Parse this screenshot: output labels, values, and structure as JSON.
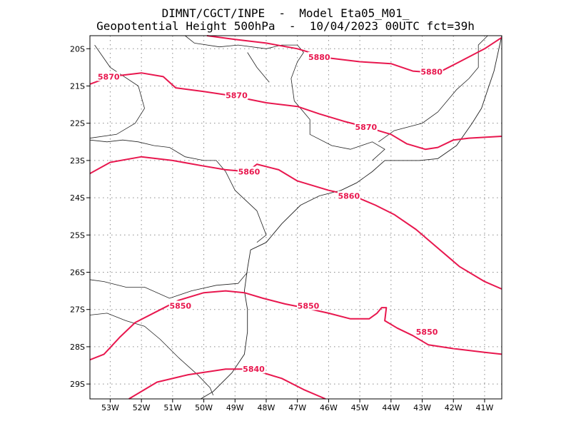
{
  "header": {
    "title_line1": "DIMNT/CGCT/INPE  -  Model Eta05_M01_",
    "title_line2": "Geopotential Height 500hPa  -  10/04/2023 00UTC fct=39h"
  },
  "map": {
    "lon_range": [
      -53.65,
      -40.45
    ],
    "lat_range": [
      -29.4,
      -19.65
    ],
    "x_ticks": [
      {
        "lon": -53,
        "label": "53W"
      },
      {
        "lon": -52,
        "label": "52W"
      },
      {
        "lon": -51,
        "label": "51W"
      },
      {
        "lon": -50,
        "label": "50W"
      },
      {
        "lon": -49,
        "label": "49W"
      },
      {
        "lon": -48,
        "label": "48W"
      },
      {
        "lon": -47,
        "label": "47W"
      },
      {
        "lon": -46,
        "label": "46W"
      },
      {
        "lon": -45,
        "label": "45W"
      },
      {
        "lon": -44,
        "label": "44W"
      },
      {
        "lon": -43,
        "label": "43W"
      },
      {
        "lon": -42,
        "label": "42W"
      },
      {
        "lon": -41,
        "label": "41W"
      }
    ],
    "y_ticks": [
      {
        "lat": -20,
        "label": "20S"
      },
      {
        "lat": -21,
        "label": "21S"
      },
      {
        "lat": -22,
        "label": "22S"
      },
      {
        "lat": -23,
        "label": "23S"
      },
      {
        "lat": -24,
        "label": "24S"
      },
      {
        "lat": -25,
        "label": "25S"
      },
      {
        "lat": -26,
        "label": "26S"
      },
      {
        "lat": -27,
        "label": "27S"
      },
      {
        "lat": -28,
        "label": "28S"
      },
      {
        "lat": -29,
        "label": "29S"
      }
    ],
    "grid": true,
    "contour_color": "#e8174e",
    "contours": [
      {
        "value": 5880,
        "points": [
          [
            -49.9,
            -19.65
          ],
          [
            -49,
            -19.75
          ],
          [
            -48,
            -19.85
          ],
          [
            -47,
            -20
          ],
          [
            -46,
            -20.25
          ],
          [
            -45,
            -20.35
          ],
          [
            -44,
            -20.4
          ],
          [
            -43.3,
            -20.6
          ],
          [
            -42.5,
            -20.65
          ],
          [
            -41.8,
            -20.35
          ],
          [
            -41,
            -20
          ],
          [
            -40.45,
            -19.7
          ]
        ],
        "labels": [
          {
            "lon": -46.3,
            "lat": -20.22,
            "text": "5880"
          },
          {
            "lon": -42.7,
            "lat": -20.62,
            "text": "5880"
          }
        ]
      },
      {
        "value": 5870,
        "points": [
          [
            -53.65,
            -20.95
          ],
          [
            -53,
            -20.75
          ],
          [
            -52,
            -20.65
          ],
          [
            -51.3,
            -20.75
          ],
          [
            -50.9,
            -21.05
          ],
          [
            -50,
            -21.15
          ],
          [
            -49.2,
            -21.25
          ],
          [
            -48,
            -21.45
          ],
          [
            -47,
            -21.55
          ],
          [
            -46.3,
            -21.75
          ],
          [
            -45.5,
            -21.95
          ],
          [
            -44.8,
            -22.1
          ],
          [
            -44,
            -22.3
          ],
          [
            -43.5,
            -22.55
          ],
          [
            -42.9,
            -22.7
          ],
          [
            -42.5,
            -22.65
          ],
          [
            -42,
            -22.45
          ],
          [
            -41.5,
            -22.4
          ],
          [
            -40.45,
            -22.35
          ]
        ],
        "labels": [
          {
            "lon": -53.05,
            "lat": -20.75,
            "text": "5870"
          },
          {
            "lon": -48.95,
            "lat": -21.25,
            "text": "5870"
          },
          {
            "lon": -44.8,
            "lat": -22.1,
            "text": "5870"
          }
        ]
      },
      {
        "value": 5860,
        "points": [
          [
            -53.65,
            -23.35
          ],
          [
            -53,
            -23.05
          ],
          [
            -52,
            -22.9
          ],
          [
            -51,
            -23
          ],
          [
            -50,
            -23.15
          ],
          [
            -49.3,
            -23.25
          ],
          [
            -48.6,
            -23.3
          ],
          [
            -48.3,
            -23.1
          ],
          [
            -47.6,
            -23.25
          ],
          [
            -47,
            -23.55
          ],
          [
            -46,
            -23.8
          ],
          [
            -45.2,
            -23.95
          ],
          [
            -44.5,
            -24.2
          ],
          [
            -43.9,
            -24.45
          ],
          [
            -43.2,
            -24.85
          ],
          [
            -42.5,
            -25.35
          ],
          [
            -41.8,
            -25.85
          ],
          [
            -41,
            -26.25
          ],
          [
            -40.45,
            -26.45
          ]
        ],
        "labels": [
          {
            "lon": -48.55,
            "lat": -23.3,
            "text": "5860"
          },
          {
            "lon": -45.35,
            "lat": -23.95,
            "text": "5860"
          }
        ]
      },
      {
        "value": 5850,
        "points": [
          [
            -53.65,
            -28.35
          ],
          [
            -53.2,
            -28.2
          ],
          [
            -52.7,
            -27.75
          ],
          [
            -52.2,
            -27.35
          ],
          [
            -51.5,
            -27.05
          ],
          [
            -50.8,
            -26.75
          ],
          [
            -50,
            -26.55
          ],
          [
            -49.3,
            -26.5
          ],
          [
            -48.7,
            -26.55
          ],
          [
            -48.1,
            -26.7
          ],
          [
            -47.4,
            -26.85
          ],
          [
            -46.8,
            -26.95
          ],
          [
            -46,
            -27.1
          ],
          [
            -45.3,
            -27.25
          ],
          [
            -44.7,
            -27.25
          ],
          [
            -44.45,
            -27.1
          ],
          [
            -44.3,
            -26.95
          ],
          [
            -44.15,
            -26.95
          ],
          [
            -44.2,
            -27.3
          ],
          [
            -43.8,
            -27.5
          ],
          [
            -43.3,
            -27.7
          ],
          [
            -42.8,
            -27.95
          ],
          [
            -42,
            -28.05
          ],
          [
            -41,
            -28.15
          ],
          [
            -40.45,
            -28.2
          ]
        ],
        "labels": [
          {
            "lon": -50.75,
            "lat": -26.9,
            "text": "5850"
          },
          {
            "lon": -46.65,
            "lat": -26.9,
            "text": "5850"
          },
          {
            "lon": -42.85,
            "lat": -27.6,
            "text": "5850"
          }
        ]
      },
      {
        "value": 5840,
        "points": [
          [
            -52.4,
            -29.4
          ],
          [
            -51.5,
            -28.95
          ],
          [
            -50.5,
            -28.75
          ],
          [
            -49.3,
            -28.6
          ],
          [
            -48.5,
            -28.6
          ],
          [
            -47.5,
            -28.85
          ],
          [
            -46.8,
            -29.15
          ],
          [
            -46.1,
            -29.4
          ]
        ],
        "labels": [
          {
            "lon": -48.4,
            "lat": -28.6,
            "text": "5840"
          }
        ]
      }
    ],
    "borders": [
      [
        [
          -50.6,
          -19.65
        ],
        [
          -50.3,
          -19.85
        ],
        [
          -49.5,
          -19.95
        ],
        [
          -48.9,
          -19.9
        ],
        [
          -48.0,
          -20.0
        ],
        [
          -47.5,
          -19.9
        ],
        [
          -47.0,
          -19.9
        ],
        [
          -46.8,
          -20.1
        ],
        [
          -47.0,
          -20.35
        ],
        [
          -47.2,
          -20.8
        ],
        [
          -47.1,
          -21.4
        ],
        [
          -46.6,
          -21.9
        ],
        [
          -46.6,
          -22.3
        ],
        [
          -45.9,
          -22.6
        ],
        [
          -45.3,
          -22.7
        ],
        [
          -44.6,
          -22.5
        ],
        [
          -44.2,
          -22.7
        ],
        [
          -44.6,
          -23.0
        ]
      ],
      [
        [
          -44.4,
          -22.5
        ],
        [
          -43.9,
          -22.2
        ],
        [
          -43.0,
          -22.0
        ],
        [
          -42.5,
          -21.7
        ],
        [
          -42.2,
          -21.4
        ],
        [
          -41.9,
          -21.1
        ],
        [
          -41.5,
          -20.8
        ],
        [
          -41.2,
          -20.5
        ],
        [
          -41.2,
          -19.9
        ],
        [
          -40.9,
          -19.65
        ]
      ],
      [
        [
          -53.65,
          -22.45
        ],
        [
          -53.1,
          -22.5
        ],
        [
          -52.6,
          -22.45
        ],
        [
          -52.1,
          -22.5
        ],
        [
          -51.6,
          -22.6
        ],
        [
          -51.1,
          -22.65
        ],
        [
          -50.6,
          -22.9
        ],
        [
          -50.0,
          -23.0
        ],
        [
          -49.6,
          -23.0
        ],
        [
          -49.3,
          -23.3
        ],
        [
          -49.0,
          -23.8
        ],
        [
          -48.3,
          -24.35
        ],
        [
          -48.0,
          -25.0
        ],
        [
          -48.3,
          -25.2
        ]
      ],
      [
        [
          -53.65,
          -26.2
        ],
        [
          -53.2,
          -26.25
        ],
        [
          -52.5,
          -26.4
        ],
        [
          -51.9,
          -26.4
        ],
        [
          -51.1,
          -26.7
        ],
        [
          -50.4,
          -26.5
        ],
        [
          -49.6,
          -26.35
        ],
        [
          -48.9,
          -26.3
        ],
        [
          -48.6,
          -26.0
        ]
      ],
      [
        [
          -53.65,
          -27.15
        ],
        [
          -53.1,
          -27.1
        ],
        [
          -52.5,
          -27.3
        ],
        [
          -51.9,
          -27.45
        ],
        [
          -51.4,
          -27.8
        ],
        [
          -50.8,
          -28.3
        ],
        [
          -50.2,
          -28.75
        ],
        [
          -49.8,
          -29.1
        ],
        [
          -49.7,
          -29.3
        ]
      ],
      [
        [
          -53.5,
          -19.9
        ],
        [
          -53.0,
          -20.5
        ],
        [
          -52.1,
          -21.0
        ],
        [
          -51.9,
          -21.6
        ],
        [
          -52.2,
          -22.0
        ],
        [
          -52.8,
          -22.3
        ],
        [
          -53.65,
          -22.4
        ]
      ],
      [
        [
          -48.6,
          -20.1
        ],
        [
          -48.3,
          -20.5
        ],
        [
          -47.9,
          -20.9
        ]
      ]
    ],
    "coastline": [
      [
        -40.45,
        -19.65
      ],
      [
        -40.7,
        -20.6
      ],
      [
        -40.9,
        -21.1
      ],
      [
        -41.1,
        -21.6
      ],
      [
        -41.4,
        -22.0
      ],
      [
        -41.9,
        -22.6
      ],
      [
        -42.5,
        -22.95
      ],
      [
        -43.1,
        -23.0
      ],
      [
        -43.6,
        -23.0
      ],
      [
        -44.2,
        -23.0
      ],
      [
        -44.6,
        -23.3
      ],
      [
        -45.1,
        -23.6
      ],
      [
        -45.6,
        -23.8
      ],
      [
        -46.3,
        -23.95
      ],
      [
        -46.9,
        -24.2
      ],
      [
        -47.5,
        -24.7
      ],
      [
        -48.0,
        -25.2
      ],
      [
        -48.5,
        -25.4
      ],
      [
        -48.6,
        -25.9
      ],
      [
        -48.7,
        -26.5
      ],
      [
        -48.6,
        -27.0
      ],
      [
        -48.6,
        -27.6
      ],
      [
        -48.7,
        -28.2
      ],
      [
        -49.1,
        -28.7
      ],
      [
        -49.7,
        -29.2
      ],
      [
        -50.1,
        -29.4
      ]
    ]
  }
}
